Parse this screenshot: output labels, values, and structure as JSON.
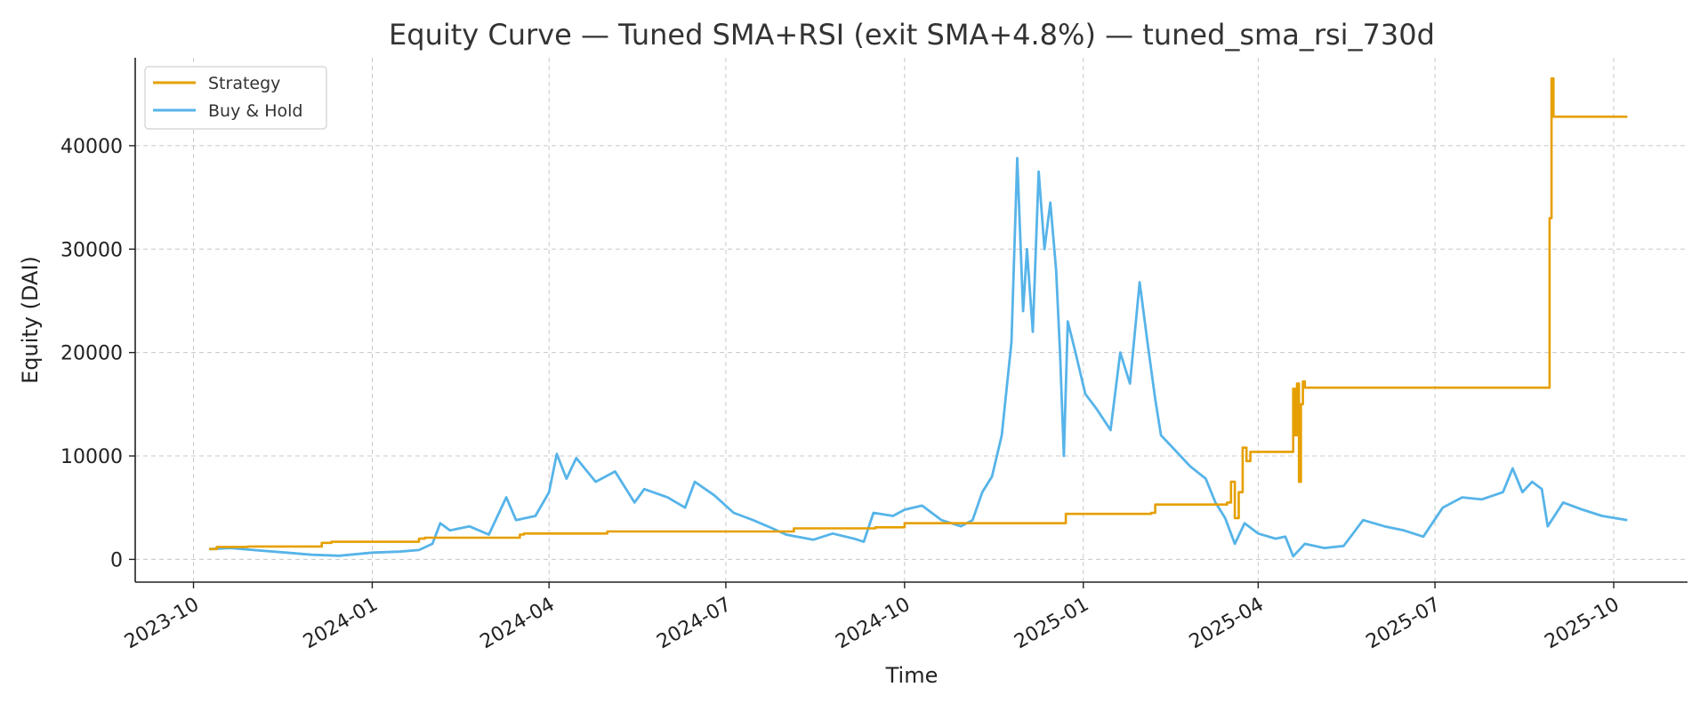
{
  "chart_data": {
    "type": "line",
    "title": "Equity Curve — Tuned SMA+RSI (exit SMA+4.8%) — tuned_sma_rsi_730d",
    "xlabel": "Time",
    "ylabel": "Equity (DAI)",
    "x_ticks": [
      "2023-10",
      "2024-01",
      "2024-04",
      "2024-07",
      "2024-10",
      "2025-01",
      "2025-04",
      "2025-07",
      "2025-10"
    ],
    "y_ticks": [
      0,
      10000,
      20000,
      30000,
      40000
    ],
    "xlim": [
      "2023-09-01",
      "2025-11-08"
    ],
    "ylim": [
      -2200,
      48500
    ],
    "grid": true,
    "legend_position": "top-left",
    "colors": {
      "strategy": "#E69F00",
      "buy_hold": "#56B4E9"
    },
    "series": [
      {
        "name": "Strategy",
        "color": "#E69F00",
        "step": true,
        "points": [
          [
            "2023-10-09",
            1000
          ],
          [
            "2023-10-13",
            1200
          ],
          [
            "2023-10-29",
            1250
          ],
          [
            "2023-12-06",
            1600
          ],
          [
            "2023-12-11",
            1700
          ],
          [
            "2024-01-25",
            2000
          ],
          [
            "2024-01-28",
            2100
          ],
          [
            "2024-03-17",
            2400
          ],
          [
            "2024-03-19",
            2500
          ],
          [
            "2024-05-01",
            2700
          ],
          [
            "2024-08-05",
            3000
          ],
          [
            "2024-09-16",
            3100
          ],
          [
            "2024-10-01",
            3500
          ],
          [
            "2024-12-23",
            4400
          ],
          [
            "2025-02-05",
            4500
          ],
          [
            "2025-02-07",
            5300
          ],
          [
            "2025-03-16",
            5500
          ],
          [
            "2025-03-18",
            7500
          ],
          [
            "2025-03-20",
            4000
          ],
          [
            "2025-03-22",
            6500
          ],
          [
            "2025-03-24",
            10800
          ],
          [
            "2025-03-26",
            9500
          ],
          [
            "2025-03-28",
            10400
          ],
          [
            "2025-04-18",
            10400
          ],
          [
            "2025-04-19",
            16500
          ],
          [
            "2025-04-20",
            12000
          ],
          [
            "2025-04-21",
            17000
          ],
          [
            "2025-04-22",
            7500
          ],
          [
            "2025-04-23",
            15000
          ],
          [
            "2025-04-24",
            17200
          ],
          [
            "2025-04-25",
            16600
          ],
          [
            "2025-08-28",
            16600
          ],
          [
            "2025-08-29",
            33000
          ],
          [
            "2025-08-30",
            46500
          ],
          [
            "2025-08-31",
            42800
          ],
          [
            "2025-10-08",
            42800
          ]
        ]
      },
      {
        "name": "Buy & Hold",
        "color": "#56B4E9",
        "step": false,
        "points": [
          [
            "2023-10-09",
            1000
          ],
          [
            "2023-10-20",
            1100
          ],
          [
            "2023-11-01",
            900
          ],
          [
            "2023-11-15",
            700
          ],
          [
            "2023-12-01",
            450
          ],
          [
            "2023-12-15",
            350
          ],
          [
            "2024-01-01",
            650
          ],
          [
            "2024-01-15",
            750
          ],
          [
            "2024-01-25",
            900
          ],
          [
            "2024-02-01",
            1500
          ],
          [
            "2024-02-05",
            3500
          ],
          [
            "2024-02-10",
            2800
          ],
          [
            "2024-02-20",
            3200
          ],
          [
            "2024-03-01",
            2400
          ],
          [
            "2024-03-10",
            6000
          ],
          [
            "2024-03-15",
            3800
          ],
          [
            "2024-03-25",
            4200
          ],
          [
            "2024-04-01",
            6500
          ],
          [
            "2024-04-05",
            10200
          ],
          [
            "2024-04-10",
            7800
          ],
          [
            "2024-04-15",
            9800
          ],
          [
            "2024-04-25",
            7500
          ],
          [
            "2024-05-05",
            8500
          ],
          [
            "2024-05-15",
            5500
          ],
          [
            "2024-05-20",
            6800
          ],
          [
            "2024-06-01",
            6000
          ],
          [
            "2024-06-10",
            5000
          ],
          [
            "2024-06-15",
            7500
          ],
          [
            "2024-06-25",
            6200
          ],
          [
            "2024-07-05",
            4500
          ],
          [
            "2024-07-15",
            3800
          ],
          [
            "2024-07-25",
            3000
          ],
          [
            "2024-08-01",
            2400
          ],
          [
            "2024-08-15",
            1900
          ],
          [
            "2024-08-25",
            2500
          ],
          [
            "2024-09-05",
            2000
          ],
          [
            "2024-09-10",
            1700
          ],
          [
            "2024-09-15",
            4500
          ],
          [
            "2024-09-25",
            4200
          ],
          [
            "2024-10-01",
            4800
          ],
          [
            "2024-10-10",
            5200
          ],
          [
            "2024-10-20",
            3800
          ],
          [
            "2024-10-30",
            3200
          ],
          [
            "2024-11-05",
            3800
          ],
          [
            "2024-11-10",
            6500
          ],
          [
            "2024-11-15",
            8000
          ],
          [
            "2024-11-20",
            12000
          ],
          [
            "2024-11-25",
            21000
          ],
          [
            "2024-11-28",
            38800
          ],
          [
            "2024-12-01",
            24000
          ],
          [
            "2024-12-03",
            30000
          ],
          [
            "2024-12-06",
            22000
          ],
          [
            "2024-12-09",
            37500
          ],
          [
            "2024-12-12",
            30000
          ],
          [
            "2024-12-15",
            34500
          ],
          [
            "2024-12-18",
            28000
          ],
          [
            "2024-12-20",
            20000
          ],
          [
            "2024-12-22",
            10000
          ],
          [
            "2024-12-24",
            23000
          ],
          [
            "2024-12-28",
            20000
          ],
          [
            "2025-01-02",
            16000
          ],
          [
            "2025-01-08",
            14500
          ],
          [
            "2025-01-15",
            12500
          ],
          [
            "2025-01-20",
            20000
          ],
          [
            "2025-01-25",
            17000
          ],
          [
            "2025-01-30",
            26800
          ],
          [
            "2025-02-03",
            21000
          ],
          [
            "2025-02-07",
            15500
          ],
          [
            "2025-02-10",
            12000
          ],
          [
            "2025-02-15",
            11000
          ],
          [
            "2025-02-25",
            9000
          ],
          [
            "2025-03-05",
            7800
          ],
          [
            "2025-03-10",
            5500
          ],
          [
            "2025-03-15",
            4000
          ],
          [
            "2025-03-20",
            1500
          ],
          [
            "2025-03-25",
            3500
          ],
          [
            "2025-04-01",
            2500
          ],
          [
            "2025-04-10",
            2000
          ],
          [
            "2025-04-15",
            2200
          ],
          [
            "2025-04-19",
            300
          ],
          [
            "2025-04-25",
            1500
          ],
          [
            "2025-05-05",
            1100
          ],
          [
            "2025-05-15",
            1300
          ],
          [
            "2025-05-25",
            3800
          ],
          [
            "2025-06-05",
            3200
          ],
          [
            "2025-06-15",
            2800
          ],
          [
            "2025-06-25",
            2200
          ],
          [
            "2025-07-05",
            5000
          ],
          [
            "2025-07-15",
            6000
          ],
          [
            "2025-07-25",
            5800
          ],
          [
            "2025-08-05",
            6500
          ],
          [
            "2025-08-10",
            8800
          ],
          [
            "2025-08-15",
            6500
          ],
          [
            "2025-08-20",
            7500
          ],
          [
            "2025-08-25",
            6800
          ],
          [
            "2025-08-28",
            3200
          ],
          [
            "2025-09-05",
            5500
          ],
          [
            "2025-09-15",
            4800
          ],
          [
            "2025-09-25",
            4200
          ],
          [
            "2025-10-08",
            3800
          ]
        ]
      }
    ]
  }
}
